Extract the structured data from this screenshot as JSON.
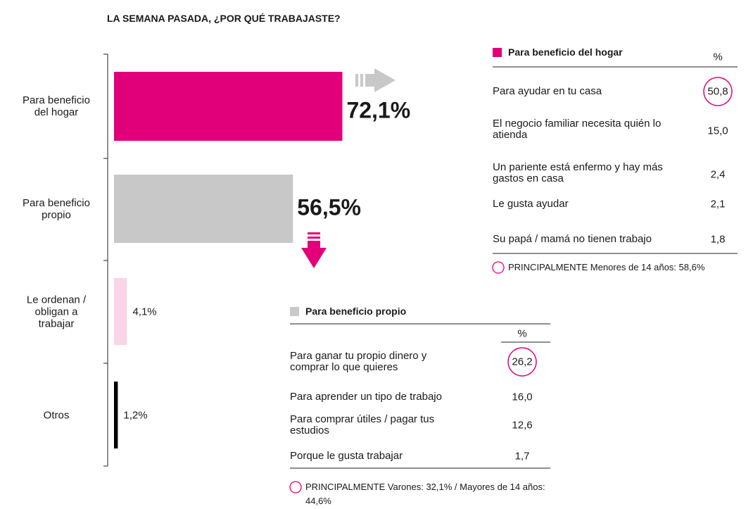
{
  "chart_data": {
    "type": "bar",
    "orientation": "horizontal",
    "title": "LA SEMANA PASADA, ¿POR QUÉ TRABAJASTE?",
    "categories": [
      "Para beneficio del hogar",
      "Para beneficio propio",
      "Le ordenan / obligan a trabajar",
      "Otros"
    ],
    "values": [
      72.1,
      56.5,
      4.1,
      1.2
    ],
    "value_labels": [
      "72,1%",
      "56,5%",
      "4,1%",
      "1,2%"
    ],
    "colors": [
      "#e2007a",
      "#c8c8c8",
      "#f9d4e7",
      "#000000"
    ],
    "xlim": [
      0,
      100
    ]
  },
  "tables": [
    {
      "title": "Para beneficio del hogar",
      "unit": "%",
      "rows": [
        {
          "label": "Para ayudar en tu casa",
          "value": "50,8"
        },
        {
          "label": "El negocio familiar necesita quién lo atienda",
          "value": "15,0"
        },
        {
          "label": "Un pariente está enfermo y hay más gastos en casa",
          "value": "2,4"
        },
        {
          "label": "Le gusta ayudar",
          "value": "2,1"
        },
        {
          "label": "Su papá / mamá no tienen trabajo",
          "value": "1,8"
        }
      ],
      "note": "PRINCIPALMENTE Menores de 14 años: 58,6%"
    },
    {
      "title": "Para beneficio propio",
      "unit": "%",
      "rows": [
        {
          "label": "Para ganar tu propio dinero y comprar lo que quieres",
          "value": "26,2"
        },
        {
          "label": "Para aprender un tipo de trabajo",
          "value": "16,0"
        },
        {
          "label": "Para comprar útiles / pagar tus estudios",
          "value": "12,6"
        },
        {
          "label": "Porque le gusta trabajar",
          "value": "1,7"
        }
      ],
      "note": "PRINCIPALMENTE Varones: 32,1% / Mayores de 14 años: 44,6%"
    }
  ]
}
